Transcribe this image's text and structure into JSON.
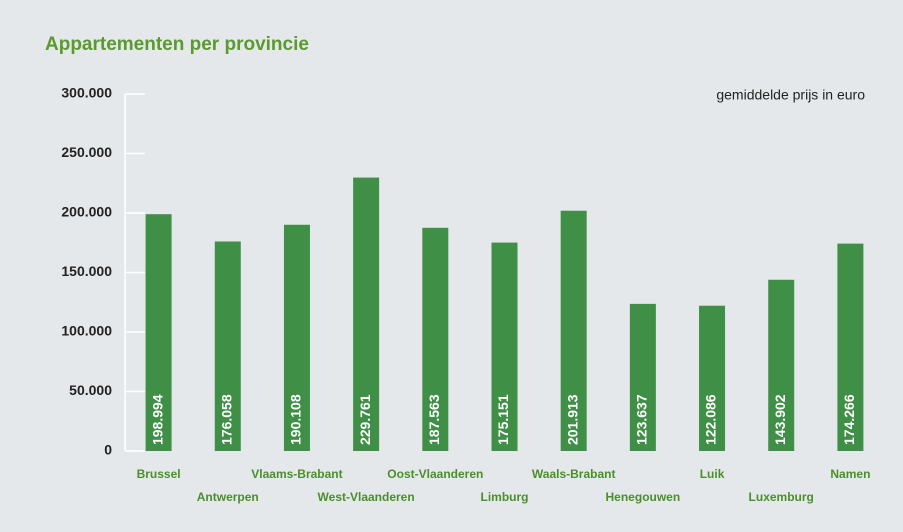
{
  "chart_data": {
    "type": "bar",
    "title": "Appartementen per provincie",
    "annotation": "gemiddelde prijs in euro",
    "categories": [
      "Brussel",
      "Antwerpen",
      "Vlaams-Brabant",
      "West-Vlaanderen",
      "Oost-Vlaanderen",
      "Limburg",
      "Waals-Brabant",
      "Henegouwen",
      "Luik",
      "Luxemburg",
      "Namen"
    ],
    "values": [
      198994,
      176058,
      190108,
      229761,
      187563,
      175151,
      201913,
      123637,
      122086,
      143902,
      174266
    ],
    "value_labels": [
      "198.994",
      "176.058",
      "190.108",
      "229.761",
      "187.563",
      "175.151",
      "201.913",
      "123.637",
      "122.086",
      "143.902",
      "174.266"
    ],
    "color": "#3f8f47",
    "ylim": [
      0,
      300000
    ],
    "yticks": [
      0,
      {
        "value": 50000,
        "label": "50.000"
      },
      {
        "value": 100000,
        "label": "100.000"
      },
      {
        "value": 150000,
        "label": "150.000"
      },
      {
        "value": 200000,
        "label": "200.000"
      },
      {
        "value": 250000,
        "label": "250.000"
      },
      {
        "value": 300000,
        "label": "300.000"
      }
    ]
  }
}
